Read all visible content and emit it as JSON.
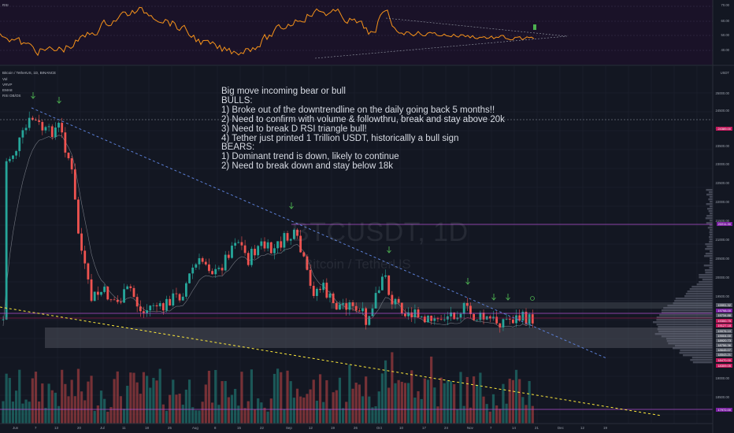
{
  "app": {
    "rsi_pane_label": "RSI",
    "symbol_title": "Bitcoin / TetherUS, 1D, BINANCE",
    "indicators": [
      "Vol",
      "VRVP",
      "EMA8",
      "RSI OB/OS"
    ]
  },
  "watermark": {
    "symbol": "BTCUSDT, 1D",
    "name": "Bitcoin / TetherUS"
  },
  "note": {
    "lines": [
      "Big move incoming bear or bull",
      "BULLS:",
      "1) Broke out of the downtrendline on the daily going back 5 months!!",
      "2) Need to confirm with volume & followthru, break and stay above 20k",
      "3) Need to break D RSI triangle bull!",
      "4) Tether just printed 1 Trillion USDT, historicallly a bull sign",
      "BEARS:",
      "1) Dominant trend is down, likely to continue",
      "2) Need to break down and stay below 18k"
    ]
  },
  "rsi_axis": [
    "70.00",
    "60.00",
    "50.00",
    "40.00"
  ],
  "price_axis": [
    "USDT",
    "25000.00",
    "24500.00",
    "24000.00",
    "23500.00",
    "23000.00",
    "22500.00",
    "22000.00",
    "21500.00",
    "21000.00",
    "20500.00",
    "20000.00",
    "19500.00",
    "19000.00",
    "18500.00"
  ],
  "price_tags": [
    {
      "text": "24389.00",
      "color": "#c2185b"
    },
    {
      "text": "22211.30",
      "color": "#7b1fa2"
    },
    {
      "text": "19991.32",
      "color": "#555a66"
    },
    {
      "text": "19798.00",
      "color": "#7b1fa2"
    },
    {
      "text": "19734.88",
      "color": "#555a66"
    },
    {
      "text": "19300.75",
      "color": "#c2185b"
    },
    {
      "text": "19127.18",
      "color": "#c2185b"
    },
    {
      "text": "19076.10",
      "color": "#555a66"
    },
    {
      "text": "19004.00",
      "color": "#555a66"
    },
    {
      "text": "18920.73",
      "color": "#555a66"
    },
    {
      "text": "18756.36",
      "color": "#555a66"
    },
    {
      "text": "18645.07",
      "color": "#555a66"
    },
    {
      "text": "18543.21",
      "color": "#555a66"
    },
    {
      "text": "18470.00",
      "color": "#c2185b"
    },
    {
      "text": "18309.05",
      "color": "#c2185b"
    },
    {
      "text": "17972.00",
      "color": "#7b1fa2"
    }
  ],
  "time_axis": [
    "Jun",
    "7",
    "13",
    "20",
    "Jul",
    "11",
    "18",
    "25",
    "Aug",
    "8",
    "15",
    "22",
    "Sep",
    "12",
    "19",
    "26",
    "Oct",
    "10",
    "17",
    "24",
    "Nov",
    "7",
    "14",
    "21",
    "Dec",
    "12",
    "19"
  ],
  "colors": {
    "background": "#131722",
    "bull_candle": "#26a69a",
    "bear_candle": "#ef5350",
    "rsi_line": "#f7931a",
    "trendline": "#5b7fd6",
    "lower_trendline": "#ffeb3b",
    "level_line": "#b04fd0",
    "arrow": "#4caf50"
  }
}
